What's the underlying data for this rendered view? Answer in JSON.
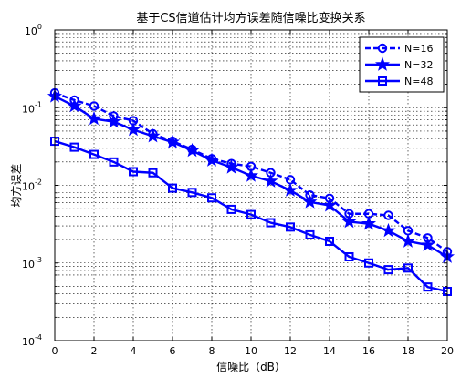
{
  "chart_data": {
    "type": "line",
    "title": "基于CS信道估计均方误差随信噪比变换关系",
    "xlabel": "信噪比（dB）",
    "ylabel": "均方误差",
    "x": [
      0,
      1,
      2,
      3,
      4,
      5,
      6,
      7,
      8,
      9,
      10,
      11,
      12,
      13,
      14,
      15,
      16,
      17,
      18,
      19,
      20
    ],
    "xlim": [
      0,
      20
    ],
    "ylim": [
      0.0001,
      1
    ],
    "yscale": "log",
    "grid": true,
    "legend_position": "top-right",
    "x_tick_labels": [
      "0",
      "2",
      "4",
      "6",
      "8",
      "10",
      "12",
      "14",
      "16",
      "18",
      "20"
    ],
    "y_tick_labels": [
      {
        "base": "10",
        "exp": "0"
      },
      {
        "base": "10",
        "exp": "-1"
      },
      {
        "base": "10",
        "exp": "-2"
      },
      {
        "base": "10",
        "exp": "-3"
      },
      {
        "base": "10",
        "exp": "-4"
      }
    ],
    "series": [
      {
        "name": "N=16",
        "color": "#0000ff",
        "line_style": "dashed",
        "marker": "circle",
        "values": [
          0.155,
          0.125,
          0.105,
          0.078,
          0.068,
          0.046,
          0.037,
          0.029,
          0.022,
          0.019,
          0.0175,
          0.0145,
          0.0118,
          0.0075,
          0.0068,
          0.0043,
          0.0043,
          0.0041,
          0.0026,
          0.0021,
          0.0014
        ]
      },
      {
        "name": "N=32",
        "color": "#0000ff",
        "line_style": "solid",
        "marker": "star",
        "values": [
          0.14,
          0.105,
          0.072,
          0.066,
          0.052,
          0.043,
          0.036,
          0.028,
          0.021,
          0.017,
          0.0133,
          0.0113,
          0.0086,
          0.0061,
          0.0055,
          0.0034,
          0.0032,
          0.0026,
          0.0019,
          0.0017,
          0.0012
        ]
      },
      {
        "name": "N=48",
        "color": "#0000ff",
        "line_style": "solid",
        "marker": "square",
        "values": [
          0.037,
          0.031,
          0.025,
          0.02,
          0.015,
          0.0145,
          0.0092,
          0.0081,
          0.0069,
          0.0049,
          0.0042,
          0.0033,
          0.0029,
          0.0023,
          0.0019,
          0.0012,
          0.001,
          0.00082,
          0.00086,
          0.00049,
          0.00043
        ]
      }
    ]
  }
}
